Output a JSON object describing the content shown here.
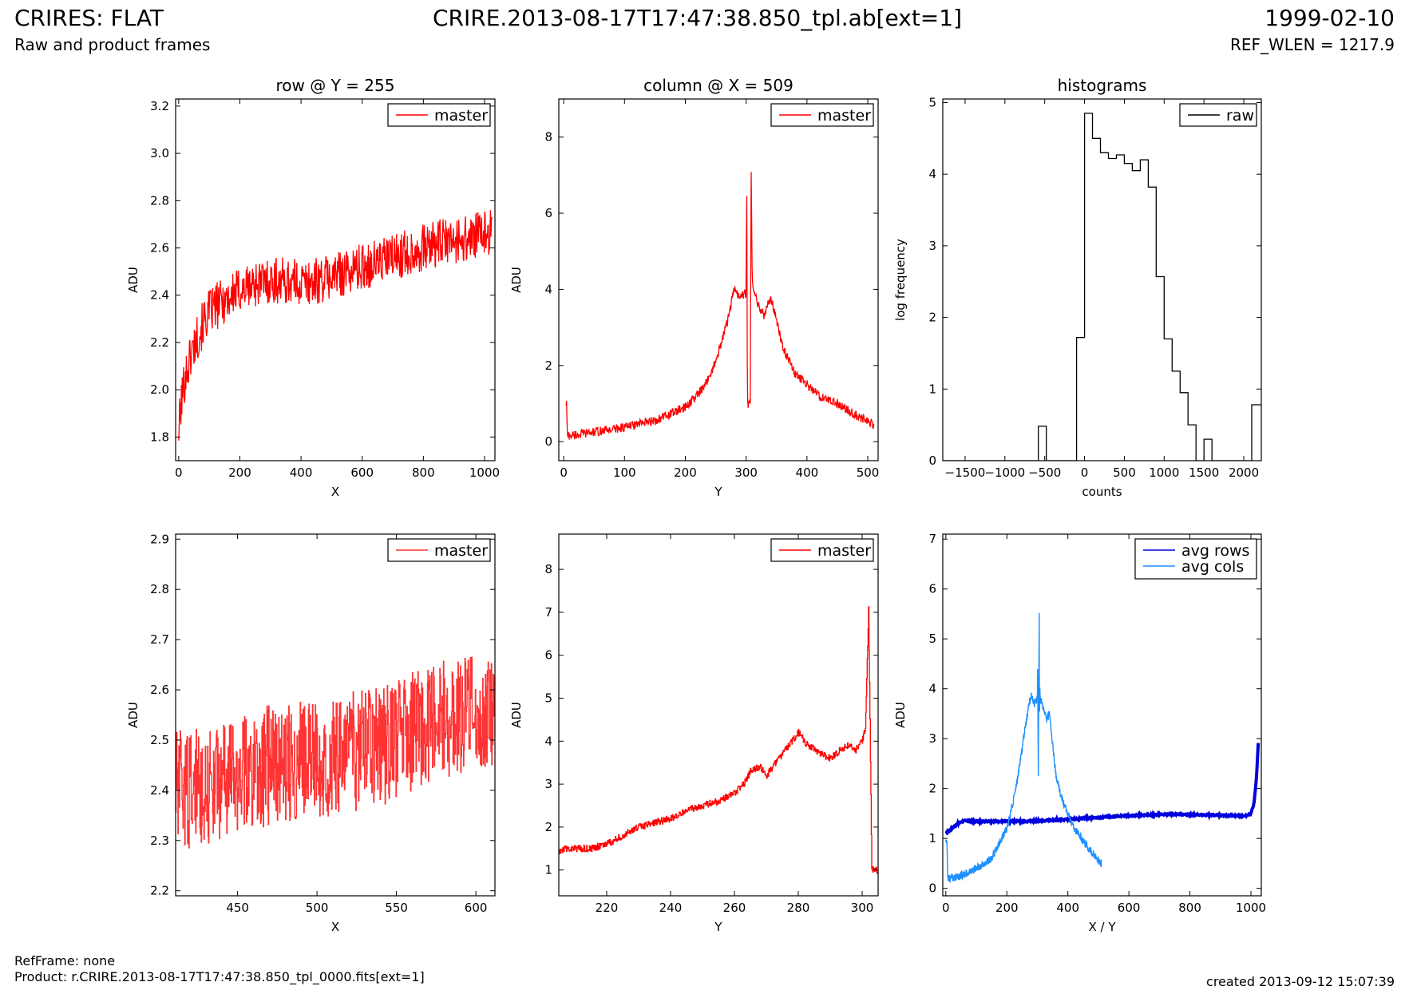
{
  "header": {
    "title": "CRIRES: FLAT",
    "subtitle": "Raw and product frames",
    "file": "CRIRE.2013-08-17T17:47:38.850_tpl.ab[ext=1]",
    "date": "1999-02-10",
    "ref_wlen": "REF_WLEN = 1217.9"
  },
  "footer": {
    "refframe": "RefFrame: none",
    "product": "Product: r.CRIRE.2013-08-17T17:47:38.850_tpl_0000.fits[ext=1]",
    "created": "created 2013-09-12 15:07:39"
  },
  "chart_data": [
    {
      "id": "row",
      "type": "line",
      "title": "row @ Y = 255",
      "xlabel": "X",
      "ylabel": "ADU",
      "xlim": [
        -10,
        1034
      ],
      "ylim": [
        1.7,
        3.23
      ],
      "xticks": [
        0,
        200,
        400,
        600,
        800,
        1000
      ],
      "yticks": [
        1.8,
        2.0,
        2.2,
        2.4,
        2.6,
        2.8,
        3.0,
        3.2
      ],
      "ydecimals": 1,
      "legend": "top-right",
      "series": [
        {
          "name": "master",
          "color": "#ff0000",
          "x": [
            0,
            10,
            20,
            40,
            60,
            80,
            100,
            150,
            200,
            250,
            300,
            350,
            400,
            450,
            500,
            550,
            600,
            650,
            700,
            750,
            800,
            850,
            900,
            950,
            1000,
            1024
          ],
          "y": [
            1.83,
            1.96,
            2.05,
            2.15,
            2.22,
            2.28,
            2.33,
            2.38,
            2.42,
            2.45,
            2.46,
            2.46,
            2.45,
            2.46,
            2.48,
            2.5,
            2.52,
            2.54,
            2.56,
            2.58,
            2.6,
            2.62,
            2.63,
            2.64,
            2.66,
            2.68
          ],
          "noise": 0.1
        }
      ]
    },
    {
      "id": "column",
      "type": "line",
      "title": "column @ X = 509",
      "xlabel": "Y",
      "ylabel": "ADU",
      "xlim": [
        -8,
        517
      ],
      "ylim": [
        -0.5,
        9.0
      ],
      "xticks": [
        0,
        100,
        200,
        300,
        400,
        500
      ],
      "yticks": [
        0,
        2,
        4,
        6,
        8
      ],
      "ydecimals": 0,
      "legend": "top-right",
      "series": [
        {
          "name": "master",
          "color": "#ff0000",
          "x": [
            4,
            5,
            6,
            50,
            100,
            150,
            200,
            230,
            250,
            270,
            280,
            290,
            300,
            301,
            302,
            303,
            304,
            305,
            306,
            307,
            308,
            310,
            320,
            330,
            340,
            350,
            360,
            380,
            400,
            420,
            450,
            480,
            510
          ],
          "y": [
            1.0,
            1.0,
            0.15,
            0.25,
            0.38,
            0.55,
            0.9,
            1.4,
            2.1,
            3.2,
            4.0,
            3.8,
            3.9,
            7.05,
            1.0,
            1.0,
            1.0,
            1.0,
            1.0,
            1.0,
            7.5,
            4.2,
            3.6,
            3.3,
            3.8,
            3.2,
            2.5,
            1.8,
            1.5,
            1.2,
            1.0,
            0.7,
            0.45
          ],
          "noise": 0.12
        }
      ]
    },
    {
      "id": "hist",
      "type": "bar",
      "title": "histograms",
      "xlabel": "counts",
      "ylabel": "log frequency",
      "xlim": [
        -1780,
        2220
      ],
      "ylim": [
        0,
        5.05
      ],
      "xticks": [
        -1500,
        -1000,
        -500,
        0,
        500,
        1000,
        1500,
        2000
      ],
      "xticklabels": [
        "−1500",
        "−1000",
        "−500",
        "0",
        "500",
        "1000",
        "1500",
        "2000"
      ],
      "yticks": [
        0,
        1,
        2,
        3,
        4,
        5
      ],
      "ydecimals": 0,
      "legend": "top-right",
      "series": [
        {
          "name": "raw",
          "color": "#000000",
          "steps": true,
          "x": [
            -1780,
            -580,
            -580,
            -480,
            -480,
            -100,
            -100,
            0,
            0,
            100,
            100,
            200,
            200,
            300,
            300,
            400,
            400,
            500,
            500,
            600,
            600,
            700,
            700,
            800,
            800,
            900,
            900,
            1000,
            1000,
            1100,
            1100,
            1200,
            1200,
            1300,
            1300,
            1400,
            1400,
            1500,
            1500,
            1600,
            1600,
            2100,
            2100,
            2220
          ],
          "y": [
            0,
            0,
            0.48,
            0.48,
            0,
            0,
            1.72,
            1.72,
            4.85,
            4.85,
            4.5,
            4.5,
            4.3,
            4.3,
            4.22,
            4.22,
            4.27,
            4.27,
            4.15,
            4.15,
            4.05,
            4.05,
            4.2,
            4.2,
            3.82,
            3.82,
            2.57,
            2.57,
            1.7,
            1.7,
            1.25,
            1.25,
            0.95,
            0.95,
            0.5,
            0.5,
            0,
            0,
            0.3,
            0.3,
            0,
            0,
            0.78,
            0.78
          ]
        }
      ]
    },
    {
      "id": "rowzoom",
      "type": "line",
      "title": "",
      "xlabel": "X",
      "ylabel": "ADU",
      "xlim": [
        411,
        612
      ],
      "ylim": [
        2.19,
        2.91
      ],
      "xticks": [
        450,
        500,
        550,
        600
      ],
      "yticks": [
        2.2,
        2.3,
        2.4,
        2.5,
        2.6,
        2.7,
        2.8,
        2.9
      ],
      "ydecimals": 1,
      "legend": "top-right",
      "series": [
        {
          "name": "master",
          "color": "#ff3333",
          "steps": true,
          "x": [
            411,
            430,
            450,
            470,
            490,
            510,
            530,
            550,
            570,
            590,
            612
          ],
          "y": [
            2.4,
            2.41,
            2.43,
            2.45,
            2.46,
            2.47,
            2.48,
            2.5,
            2.53,
            2.55,
            2.56
          ],
          "noise": 0.12
        }
      ]
    },
    {
      "id": "colzoom",
      "type": "line",
      "title": "",
      "xlabel": "Y",
      "ylabel": "ADU",
      "xlim": [
        205,
        305
      ],
      "ylim": [
        0.4,
        8.82
      ],
      "xticks": [
        220,
        240,
        260,
        280,
        300
      ],
      "yticks": [
        1,
        2,
        3,
        4,
        5,
        6,
        7,
        8
      ],
      "ydecimals": 0,
      "legend": "top-right",
      "series": [
        {
          "name": "master",
          "color": "#ff0000",
          "steps": true,
          "x": [
            205,
            207,
            210,
            215,
            220,
            225,
            230,
            235,
            240,
            245,
            250,
            255,
            260,
            263,
            265,
            268,
            270,
            275,
            278,
            280,
            283,
            285,
            290,
            295,
            298,
            300,
            301,
            302,
            303,
            305
          ],
          "y": [
            1.4,
            1.5,
            1.5,
            1.5,
            1.6,
            1.8,
            2.0,
            2.1,
            2.2,
            2.4,
            2.5,
            2.6,
            2.8,
            3.0,
            3.3,
            3.4,
            3.2,
            3.7,
            4.0,
            4.2,
            3.9,
            3.8,
            3.6,
            3.9,
            3.8,
            4.0,
            4.3,
            7.05,
            1.0,
            1.0
          ],
          "noise": 0.08
        }
      ]
    },
    {
      "id": "avg",
      "type": "line",
      "title": "",
      "xlabel": "X / Y",
      "ylabel": "ADU",
      "xlim": [
        -10,
        1034
      ],
      "ylim": [
        -0.15,
        7.1
      ],
      "xticks": [
        0,
        200,
        400,
        600,
        800,
        1000
      ],
      "yticks": [
        0,
        1,
        2,
        3,
        4,
        5,
        6,
        7
      ],
      "ydecimals": 0,
      "legend": "top-right",
      "series": [
        {
          "name": "avg rows",
          "color": "#0000dd",
          "width": 4,
          "x": [
            0,
            20,
            40,
            60,
            100,
            200,
            300,
            400,
            500,
            600,
            700,
            800,
            900,
            980,
            1000,
            1010,
            1018,
            1024
          ],
          "y": [
            1.1,
            1.2,
            1.3,
            1.35,
            1.34,
            1.34,
            1.35,
            1.38,
            1.42,
            1.46,
            1.48,
            1.48,
            1.46,
            1.45,
            1.5,
            1.7,
            2.2,
            2.9
          ],
          "noise": 0.015
        },
        {
          "name": "avg cols",
          "color": "#1e90ff",
          "width": 1.4,
          "x": [
            0,
            4,
            6,
            10,
            50,
            100,
            150,
            200,
            230,
            250,
            270,
            280,
            290,
            300,
            301,
            303,
            305,
            306,
            307,
            308,
            310,
            320,
            330,
            340,
            350,
            360,
            380,
            400,
            420,
            450,
            480,
            510
          ],
          "y": [
            1.0,
            0.9,
            0.2,
            0.2,
            0.25,
            0.4,
            0.6,
            1.2,
            2.0,
            2.8,
            3.6,
            3.9,
            3.7,
            3.8,
            4.5,
            2.1,
            4.4,
            5.55,
            3.2,
            4.0,
            3.8,
            3.6,
            3.4,
            3.5,
            2.9,
            2.3,
            1.8,
            1.5,
            1.2,
            0.95,
            0.7,
            0.5
          ],
          "noise": 0.08
        }
      ]
    }
  ]
}
